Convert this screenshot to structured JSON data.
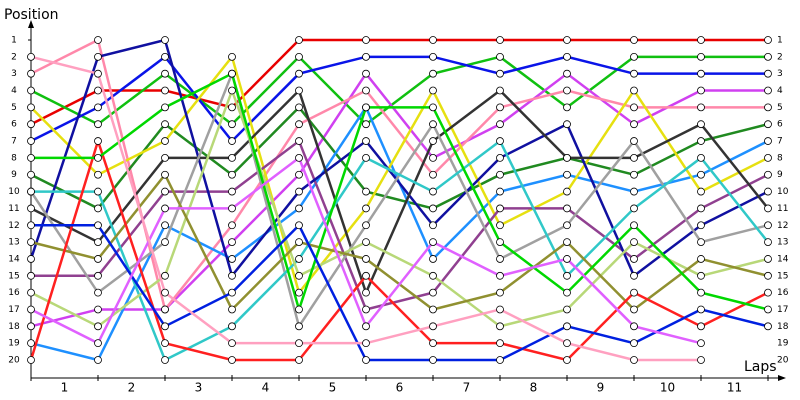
{
  "chart_data": {
    "type": "line",
    "y_label": "Position",
    "x_label": "Laps",
    "x": [
      0,
      1,
      2,
      3,
      4,
      5,
      6,
      7,
      8,
      9,
      10,
      11
    ],
    "xlim": [
      0,
      11
    ],
    "xticks": [
      {
        "value": 0.5,
        "label": "1"
      },
      {
        "value": 1.5,
        "label": "2"
      },
      {
        "value": 2.5,
        "label": "3"
      },
      {
        "value": 3.5,
        "label": "4"
      },
      {
        "value": 4.5,
        "label": "5"
      },
      {
        "value": 5.5,
        "label": "6"
      },
      {
        "value": 6.5,
        "label": "7"
      },
      {
        "value": 7.5,
        "label": "8"
      },
      {
        "value": 8.5,
        "label": "9"
      },
      {
        "value": 9.5,
        "label": "10"
      },
      {
        "value": 10.5,
        "label": "11"
      }
    ],
    "ylim": [
      20,
      1
    ],
    "yticks": [
      1,
      2,
      3,
      4,
      5,
      6,
      7,
      8,
      9,
      10,
      11,
      12,
      13,
      14,
      15,
      16,
      17,
      18,
      19,
      20
    ],
    "series": [
      {
        "color": "#e80000",
        "values": [
          6,
          4,
          4,
          5,
          1,
          1,
          1,
          1,
          1,
          1,
          1,
          1
        ]
      },
      {
        "color": "#10c010",
        "values": [
          4,
          6,
          3,
          6,
          2,
          6,
          3,
          2,
          5,
          2,
          2,
          2
        ]
      },
      {
        "color": "#0a14e8",
        "values": [
          7,
          5,
          2,
          7,
          3,
          2,
          2,
          3,
          2,
          3,
          3,
          3
        ]
      },
      {
        "color": "#d040f0",
        "values": [
          18,
          17,
          17,
          13,
          9,
          3,
          8,
          6,
          3,
          6,
          4,
          4
        ]
      },
      {
        "color": "#ff88aa",
        "values": [
          3,
          1,
          17,
          12,
          6,
          4,
          9,
          5,
          4,
          5,
          5,
          5
        ]
      },
      {
        "color": "#208a20",
        "values": [
          9,
          11,
          6,
          9,
          5,
          10,
          11,
          9,
          8,
          9,
          7,
          6
        ]
      },
      {
        "color": "#1e90ff",
        "values": [
          19,
          20,
          12,
          14,
          11,
          5,
          14,
          10,
          9,
          10,
          9,
          7
        ]
      },
      {
        "color": "#e6e010",
        "values": [
          5,
          9,
          7,
          2,
          16,
          11,
          4,
          12,
          10,
          4,
          10,
          8
        ]
      },
      {
        "color": "#904090",
        "values": [
          15,
          15,
          10,
          10,
          7,
          17,
          16,
          11,
          11,
          14,
          11,
          9
        ]
      },
      {
        "color": "#1010a0",
        "values": [
          14,
          2,
          1,
          15,
          10,
          7,
          12,
          8,
          6,
          15,
          12,
          10
        ]
      },
      {
        "color": "#333333",
        "values": [
          11,
          13,
          8,
          8,
          4,
          16,
          7,
          4,
          8,
          8,
          6,
          11
        ]
      },
      {
        "color": "#a0a0a0",
        "values": [
          10,
          16,
          13,
          3,
          18,
          12,
          6,
          14,
          12,
          7,
          13,
          12
        ]
      },
      {
        "color": "#30c8c8",
        "values": [
          10,
          10,
          20,
          18,
          14,
          8,
          10,
          7,
          15,
          11,
          8,
          13
        ]
      },
      {
        "color": "#b8d878",
        "values": [
          16,
          18,
          15,
          4,
          15,
          13,
          15,
          18,
          17,
          13,
          15,
          14
        ]
      },
      {
        "color": "#909030",
        "values": [
          13,
          14,
          9,
          17,
          13,
          14,
          17,
          16,
          13,
          17,
          14,
          15
        ]
      },
      {
        "color": "#ff2020",
        "values": [
          20,
          7,
          19,
          20,
          20,
          15,
          19,
          19,
          20,
          16,
          18,
          16
        ]
      },
      {
        "color": "#00d800",
        "values": [
          8,
          8,
          5,
          3,
          17,
          5,
          5,
          13,
          16,
          12,
          16,
          17
        ]
      },
      {
        "color": "#0020e0",
        "values": [
          12,
          12,
          18,
          16,
          12,
          20,
          20,
          20,
          18,
          19,
          17,
          18
        ]
      },
      {
        "color": "#e060ff",
        "values": [
          17,
          19,
          11,
          11,
          8,
          18,
          13,
          15,
          14,
          18,
          19,
          null
        ]
      },
      {
        "color": "#ffa0c0",
        "values": [
          2,
          3,
          16,
          19,
          19,
          19,
          18,
          17,
          19,
          20,
          20,
          null
        ]
      }
    ]
  }
}
